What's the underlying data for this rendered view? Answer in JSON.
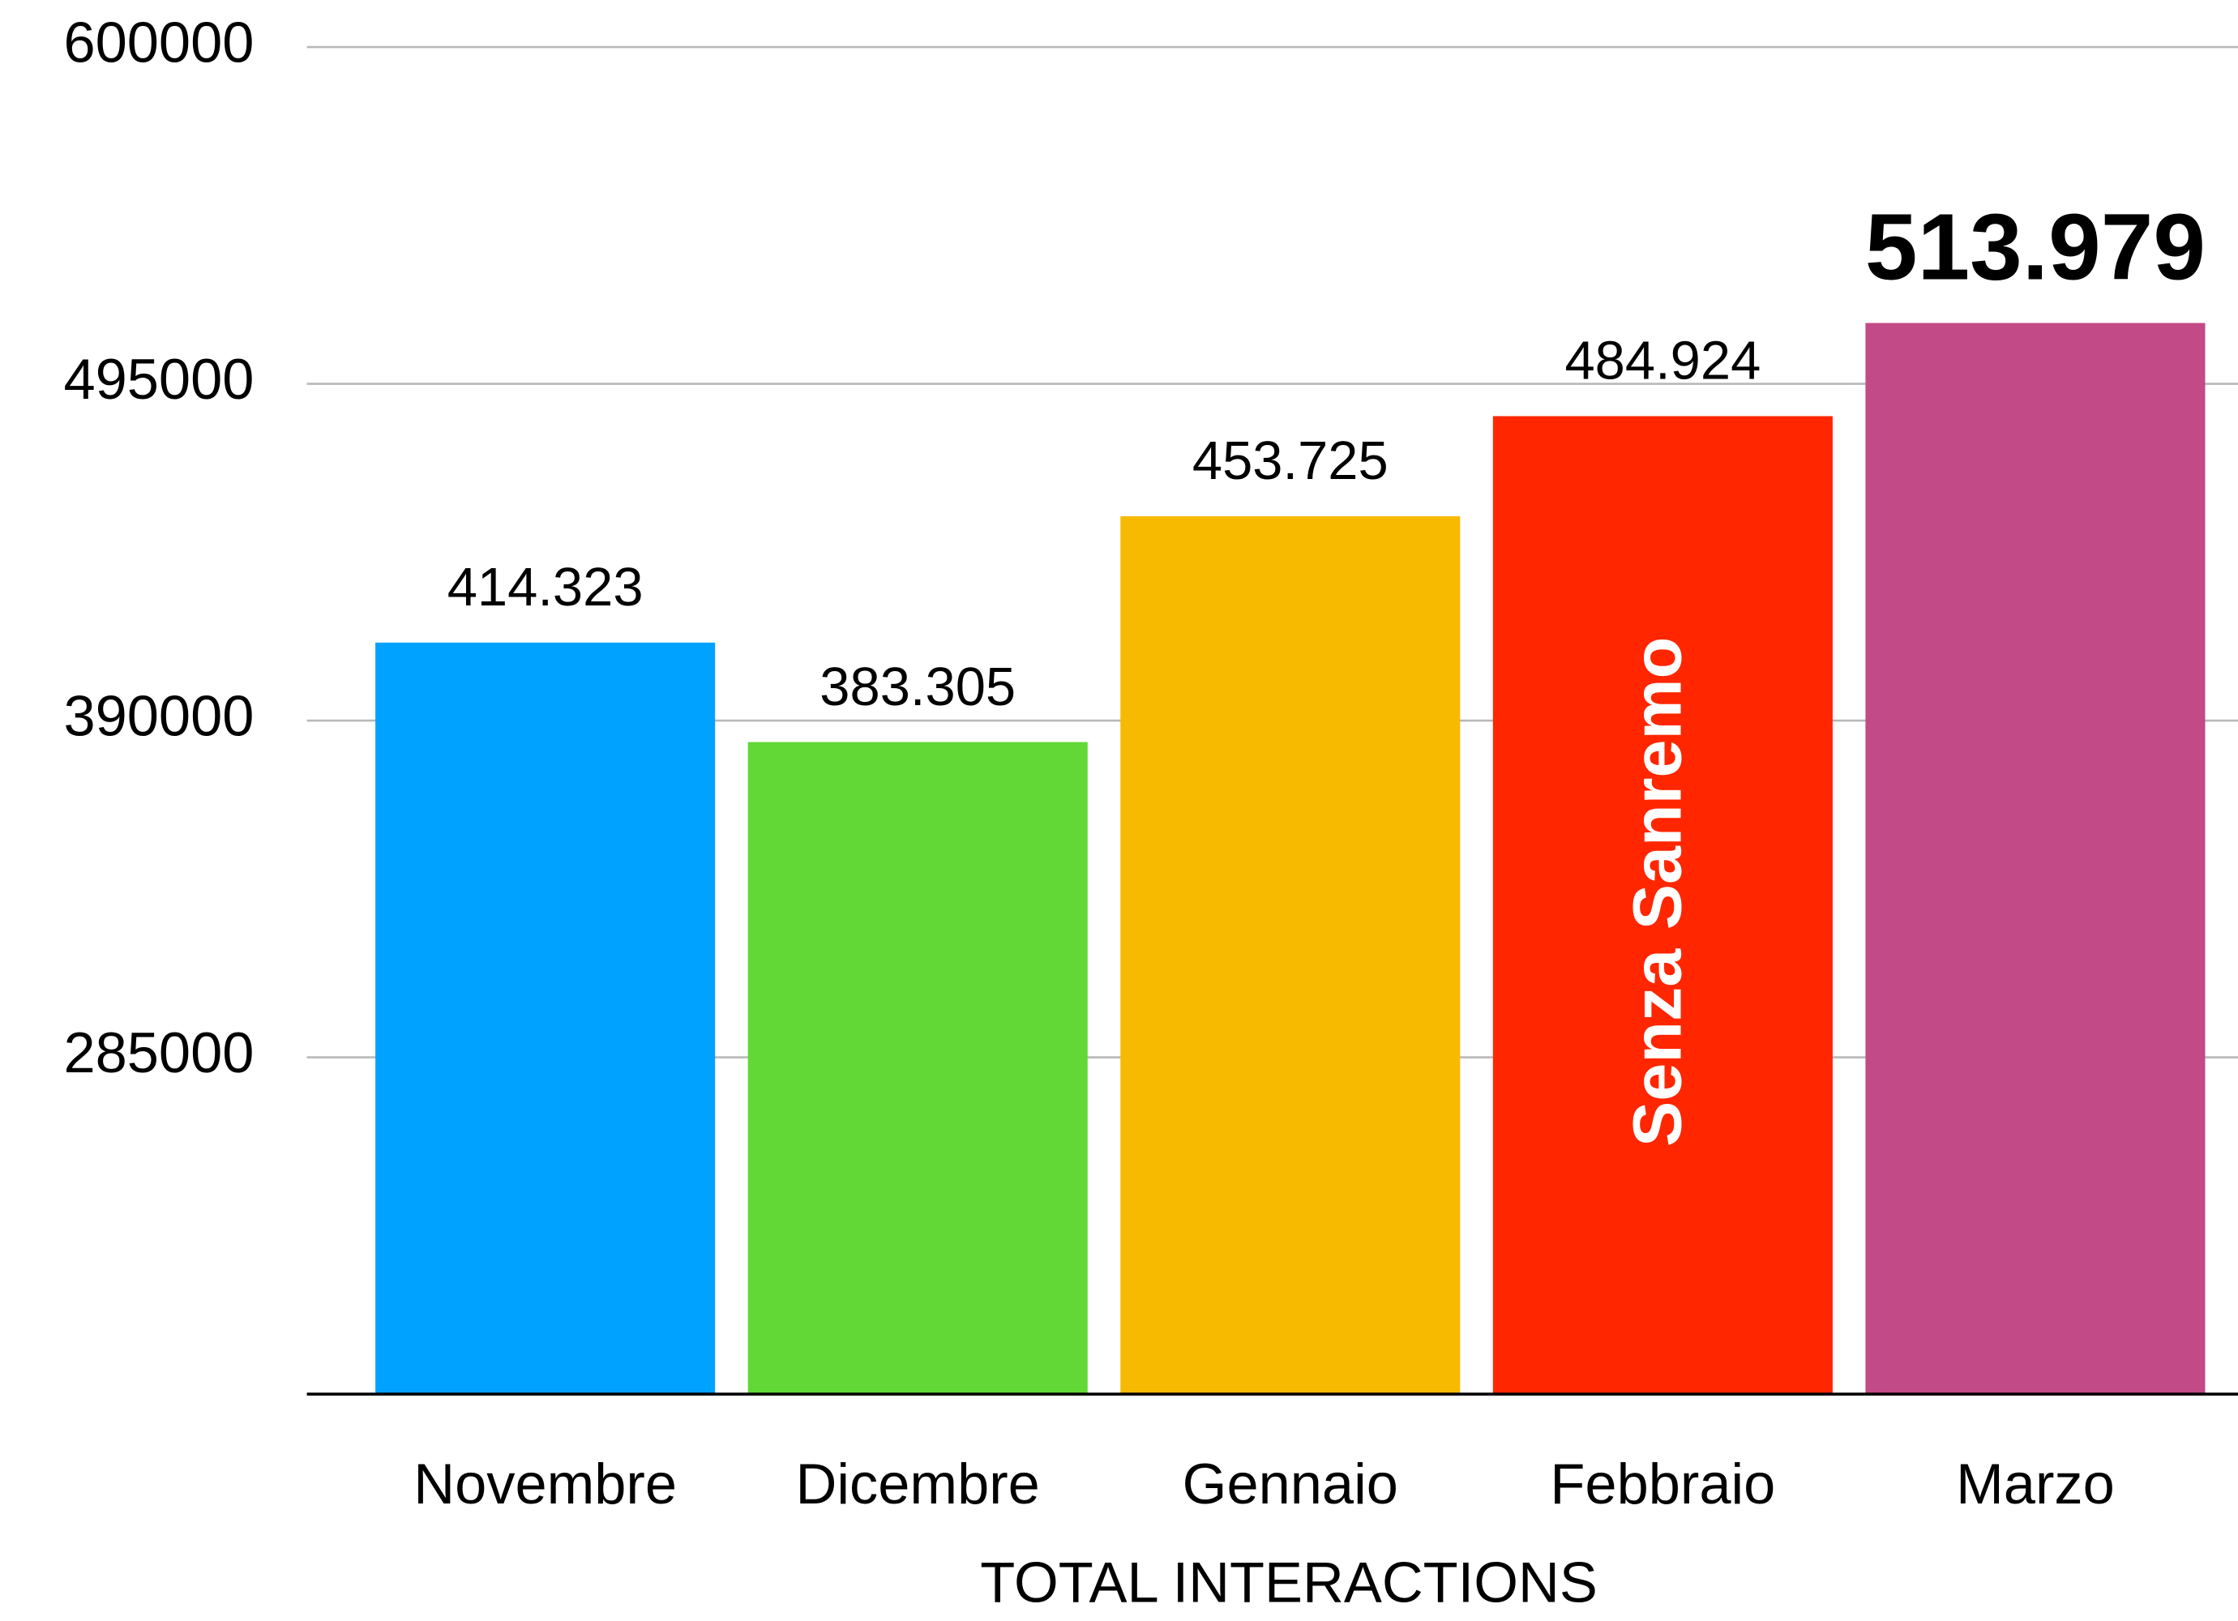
{
  "chart_data": {
    "type": "bar",
    "x_label": "TOTAL INTERACTIONS",
    "categories": [
      "Novembre",
      "Dicembre",
      "Gennaio",
      "Febbraio",
      "Marzo"
    ],
    "values": [
      414323,
      383305,
      453725,
      484924,
      513979
    ],
    "value_labels": [
      "414.323",
      "383.305",
      "453.725",
      "484.924",
      "513.979"
    ],
    "colors": [
      "#00a2ff",
      "#61d836",
      "#f8ba00",
      "#ff2600",
      "#c24a86"
    ],
    "ylim": [
      180000,
      600000
    ],
    "yticks": [
      285000,
      390000,
      495000,
      600000
    ],
    "grid": true,
    "annotations": [
      {
        "text": "Senza Sanremo",
        "category": "Febbraio"
      }
    ]
  }
}
